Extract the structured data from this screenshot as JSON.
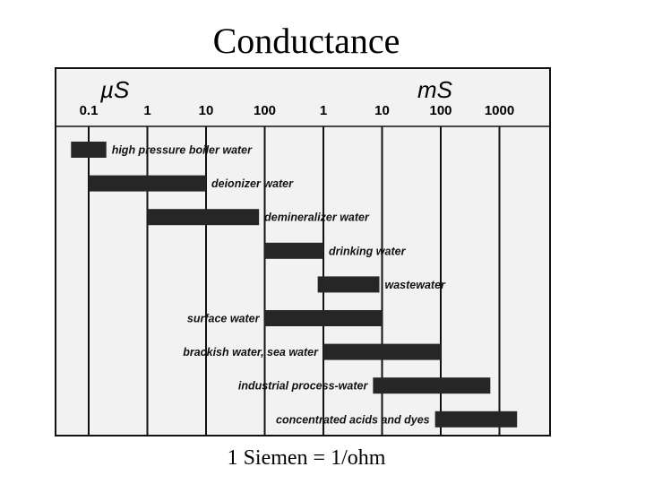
{
  "slide": {
    "title": "Conductance",
    "footer": "1 Siemen = 1/ohm"
  },
  "chart_data": {
    "type": "bar",
    "orientation": "horizontal-range",
    "scale": "log",
    "units": [
      "µS",
      "mS"
    ],
    "tick_labels": [
      "0.1",
      "1",
      "10",
      "100",
      "1",
      "10",
      "100",
      "1000"
    ],
    "tick_values_uS": [
      0.1,
      1,
      10,
      100,
      1000,
      10000,
      100000,
      1000000
    ],
    "xlim_uS": [
      0.05,
      3000000
    ],
    "grid": true,
    "bars": [
      {
        "label": "high pressure boiler water",
        "low_uS": 0.05,
        "high_uS": 0.2,
        "label_side": "right"
      },
      {
        "label": "deionizer water",
        "low_uS": 0.1,
        "high_uS": 10,
        "label_side": "right"
      },
      {
        "label": "demineralizer water",
        "low_uS": 1,
        "high_uS": 80,
        "label_side": "right"
      },
      {
        "label": "drinking water",
        "low_uS": 100,
        "high_uS": 1000,
        "label_side": "right"
      },
      {
        "label": "wastewater",
        "low_uS": 800,
        "high_uS": 9000,
        "label_side": "right"
      },
      {
        "label": "surface water",
        "low_uS": 100,
        "high_uS": 10000,
        "label_side": "left"
      },
      {
        "label": "brackish water, sea water",
        "low_uS": 1000,
        "high_uS": 100000,
        "label_side": "left"
      },
      {
        "label": "industrial process-water",
        "low_uS": 7000,
        "high_uS": 700000,
        "label_side": "left"
      },
      {
        "label": "concentrated acids and dyes",
        "low_uS": 80000,
        "high_uS": 2000000,
        "label_side": "left"
      }
    ]
  }
}
